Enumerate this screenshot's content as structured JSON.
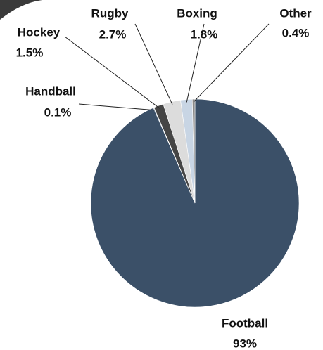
{
  "chart_data": {
    "type": "pie",
    "categories": [
      "Football",
      "Handball",
      "Hockey",
      "Rugby",
      "Boxing",
      "Other"
    ],
    "values": [
      93,
      0.1,
      1.5,
      2.7,
      1.8,
      0.4
    ],
    "value_labels": [
      "93%",
      "0.1%",
      "1.5%",
      "2.7%",
      "1.8%",
      "0.4%"
    ],
    "colors": [
      "#3b5068",
      "#8fa3bb",
      "#454545",
      "#dcdcdc",
      "#c8d5e4",
      "#8a8a8a"
    ]
  }
}
